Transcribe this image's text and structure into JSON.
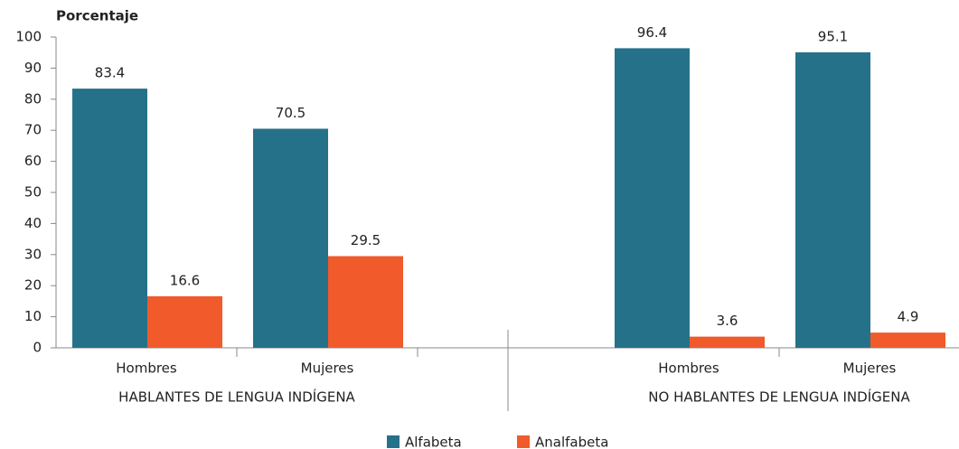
{
  "chart_data": {
    "type": "bar",
    "y_label": "Porcentaje",
    "categories": [
      "Hombres",
      "Mujeres",
      null,
      "Hombres",
      "Mujeres"
    ],
    "groups": [
      "HABLANTES DE LENGUA INDÍGENA",
      "NO HABLANTES DE LENGUA INDÍGENA"
    ],
    "series": [
      {
        "name": "Alfabeta",
        "color": "#26718a",
        "values": [
          83.4,
          70.5,
          null,
          96.4,
          95.1
        ]
      },
      {
        "name": "Analfabeta",
        "color": "#f15a2b",
        "values": [
          16.6,
          29.5,
          null,
          3.6,
          4.9
        ]
      }
    ],
    "ylim": [
      0,
      100
    ],
    "yticks": [
      0,
      10,
      20,
      30,
      40,
      50,
      60,
      70,
      80,
      90,
      100
    ],
    "legend": "bottom"
  }
}
